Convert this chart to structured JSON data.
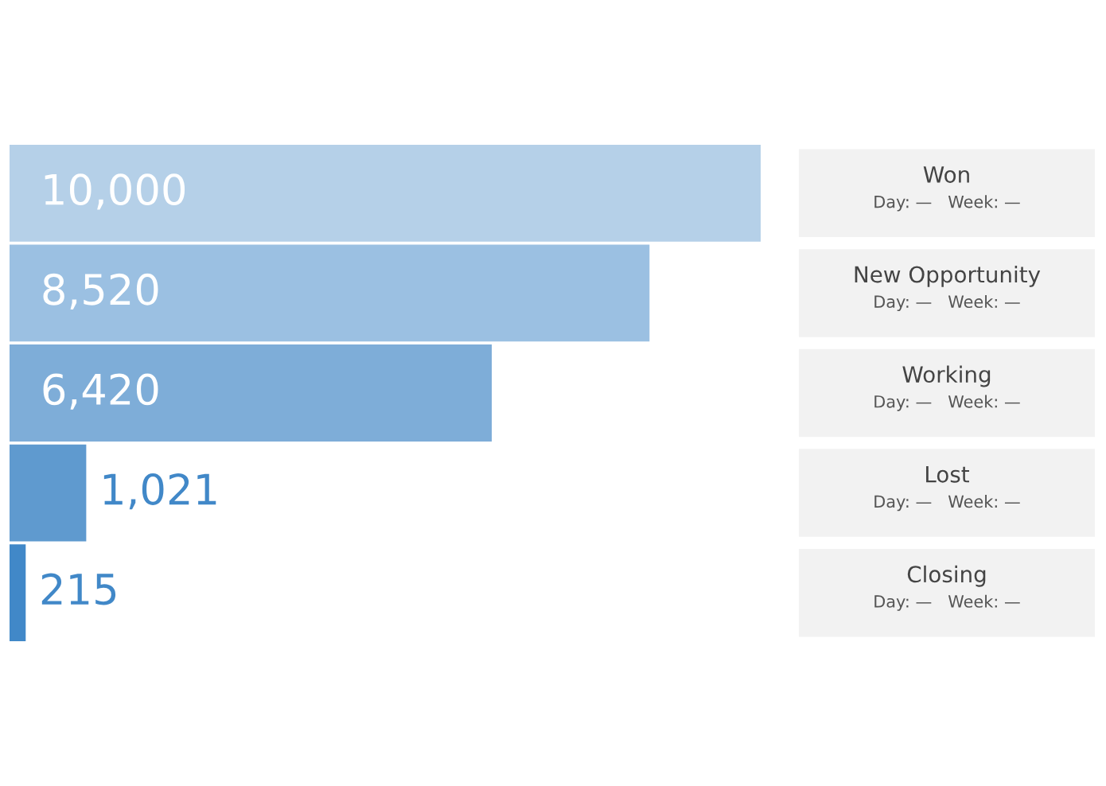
{
  "chart_data": {
    "type": "bar",
    "orientation": "horizontal",
    "categories": [
      "Won",
      "New Opportunity",
      "Working",
      "Lost",
      "Closing"
    ],
    "values": [
      10000,
      8520,
      6420,
      1021,
      215
    ],
    "value_labels": [
      "10,000",
      "8,520",
      "6,420",
      "1,021",
      "215"
    ],
    "colors": [
      "#b5d0e8",
      "#9bc0e2",
      "#7eadd8",
      "#5f9acf",
      "#4188c8"
    ],
    "annotations": [
      "Day: —   Week: —",
      "Day: —   Week: —",
      "Day: —   Week: —",
      "Day: —   Week: —",
      "Day: —   Week: —"
    ]
  }
}
